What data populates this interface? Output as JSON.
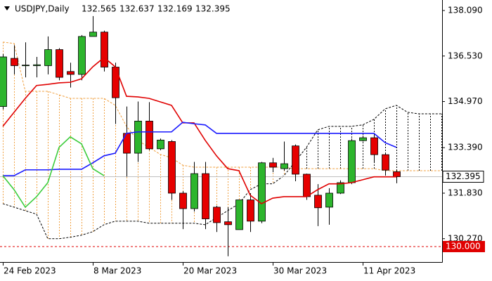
{
  "chart_data": {
    "type": "candlestick",
    "title": "USDJPY,Daily",
    "categories": [
      "24 Feb 2023",
      null,
      null,
      null,
      null,
      null,
      null,
      null,
      "8 Mar 2023",
      null,
      null,
      null,
      null,
      null,
      null,
      null,
      "20 Mar 2023",
      null,
      null,
      null,
      null,
      null,
      null,
      null,
      "30 Mar 2023",
      null,
      null,
      null,
      null,
      null,
      null,
      null,
      "11 Apr 2023",
      null,
      null,
      null,
      null,
      null,
      null,
      null
    ],
    "open": [
      134.8,
      136.45,
      136.2,
      136.2,
      136.2,
      136.75,
      136.0,
      135.9,
      137.2,
      137.35,
      136.15,
      133.88,
      133.2,
      134.3,
      133.35,
      133.6,
      131.83,
      131.3,
      132.5,
      131.35,
      130.85,
      130.58,
      131.6,
      130.87,
      132.87,
      132.67,
      133.45,
      132.48,
      131.76,
      131.35,
      131.83,
      132.19,
      133.63,
      133.73,
      133.15,
      132.565,
      null,
      null,
      null,
      null
    ],
    "high": [
      136.6,
      136.9,
      137.0,
      136.5,
      137.2,
      136.8,
      136.3,
      137.25,
      137.9,
      137.4,
      136.3,
      134.8,
      134.97,
      134.95,
      133.7,
      133.65,
      131.9,
      132.9,
      132.9,
      131.4,
      131.35,
      131.6,
      131.83,
      132.9,
      133.04,
      133.6,
      133.5,
      132.5,
      132.14,
      132.0,
      132.27,
      133.7,
      133.8,
      133.88,
      133.2,
      132.637,
      null,
      null,
      null,
      null
    ],
    "low": [
      134.7,
      135.9,
      135.8,
      135.8,
      135.9,
      135.7,
      135.45,
      135.7,
      137.2,
      136.0,
      134.2,
      132.4,
      132.9,
      133.3,
      133.3,
      131.6,
      130.6,
      131.2,
      130.6,
      130.5,
      129.67,
      130.58,
      130.5,
      130.8,
      132.55,
      132.6,
      132.24,
      131.6,
      130.7,
      130.75,
      131.8,
      132.14,
      133.6,
      132.87,
      132.43,
      132.169,
      null,
      null,
      null,
      null
    ],
    "close": [
      136.5,
      136.2,
      136.22,
      136.23,
      136.75,
      135.8,
      135.9,
      137.2,
      137.35,
      136.15,
      135.1,
      133.2,
      134.3,
      133.35,
      133.65,
      131.83,
      131.3,
      132.5,
      130.95,
      130.82,
      130.75,
      131.6,
      130.87,
      132.87,
      132.72,
      132.84,
      132.48,
      131.71,
      131.33,
      131.83,
      132.19,
      133.63,
      133.73,
      133.15,
      132.62,
      132.395,
      null,
      null,
      null,
      null
    ],
    "up_color": "#2db52d",
    "down_color": "#e60000",
    "series": [
      {
        "color": "#e00000",
        "values": [
          134.12,
          134.6,
          135.08,
          135.52,
          135.56,
          135.61,
          135.63,
          135.75,
          136.16,
          136.48,
          136.16,
          135.15,
          135.13,
          135.08,
          134.96,
          134.84,
          134.24,
          134.24,
          133.64,
          133.11,
          132.67,
          132.6,
          131.76,
          131.47,
          131.66,
          131.71,
          131.71,
          131.71,
          131.95,
          132.15,
          132.15,
          132.19,
          132.29,
          132.39,
          132.39,
          132.39,
          null,
          null,
          null,
          null
        ]
      },
      {
        "color": "#1a1aff",
        "values": [
          132.43,
          132.43,
          132.63,
          132.63,
          132.63,
          132.65,
          132.65,
          132.65,
          132.87,
          133.11,
          133.2,
          133.88,
          133.93,
          133.93,
          133.93,
          133.93,
          134.26,
          134.21,
          134.17,
          133.88,
          133.88,
          133.88,
          133.88,
          133.88,
          133.88,
          133.88,
          133.88,
          133.88,
          133.88,
          133.88,
          133.88,
          133.88,
          133.88,
          133.88,
          133.56,
          133.4,
          null,
          null,
          null,
          null
        ]
      },
      {
        "color": "#3ccc3c",
        "values": [
          132.43,
          131.95,
          131.35,
          131.71,
          132.19,
          133.4,
          133.76,
          133.52,
          132.67,
          132.43,
          null,
          null,
          null,
          null,
          null,
          null,
          null,
          null,
          null,
          null,
          null,
          null,
          null,
          null,
          null,
          null,
          null,
          null,
          null,
          null,
          null,
          null,
          null,
          null,
          null,
          null,
          null,
          null,
          null,
          null
        ]
      }
    ],
    "cloud": {
      "upper": {
        "color": "#f0a040",
        "values": [
          137.01,
          136.96,
          135.32,
          135.32,
          135.32,
          135.2,
          135.08,
          135.08,
          135.08,
          135.08,
          134.84,
          134.12,
          133.64,
          133.4,
          133.16,
          133.04,
          132.79,
          132.72,
          132.72,
          132.72,
          132.72,
          132.72,
          132.72,
          132.72,
          132.72,
          132.72,
          132.67,
          132.67,
          132.67,
          132.67,
          132.67,
          132.67,
          132.67,
          132.67,
          132.6,
          132.6,
          132.6,
          132.6,
          132.6,
          132.6
        ]
      },
      "lower": {
        "color": "#000000",
        "values": [
          131.47,
          131.35,
          131.23,
          131.11,
          130.27,
          130.27,
          130.32,
          130.39,
          130.51,
          130.75,
          130.87,
          130.87,
          130.87,
          130.8,
          130.8,
          130.8,
          130.8,
          130.8,
          130.75,
          130.99,
          131.23,
          131.47,
          131.95,
          132.15,
          132.15,
          132.43,
          132.91,
          133.4,
          134.0,
          134.12,
          134.12,
          134.12,
          134.17,
          134.36,
          134.72,
          134.84,
          134.6,
          134.55,
          134.55,
          134.55
        ]
      }
    },
    "level": {
      "value": 130,
      "label": "130.000",
      "color": "#e00000"
    },
    "ylim": [
      129.47,
      138.45
    ],
    "yticks": [
      {
        "value": 138.09,
        "label": "138.090"
      },
      {
        "value": 136.53,
        "label": "136.530"
      },
      {
        "value": 134.97,
        "label": "134.970"
      },
      {
        "value": 133.39,
        "label": "133.390"
      },
      {
        "value": 131.83,
        "label": "131.830"
      },
      {
        "value": 130.27,
        "label": "130.270"
      }
    ]
  }
}
